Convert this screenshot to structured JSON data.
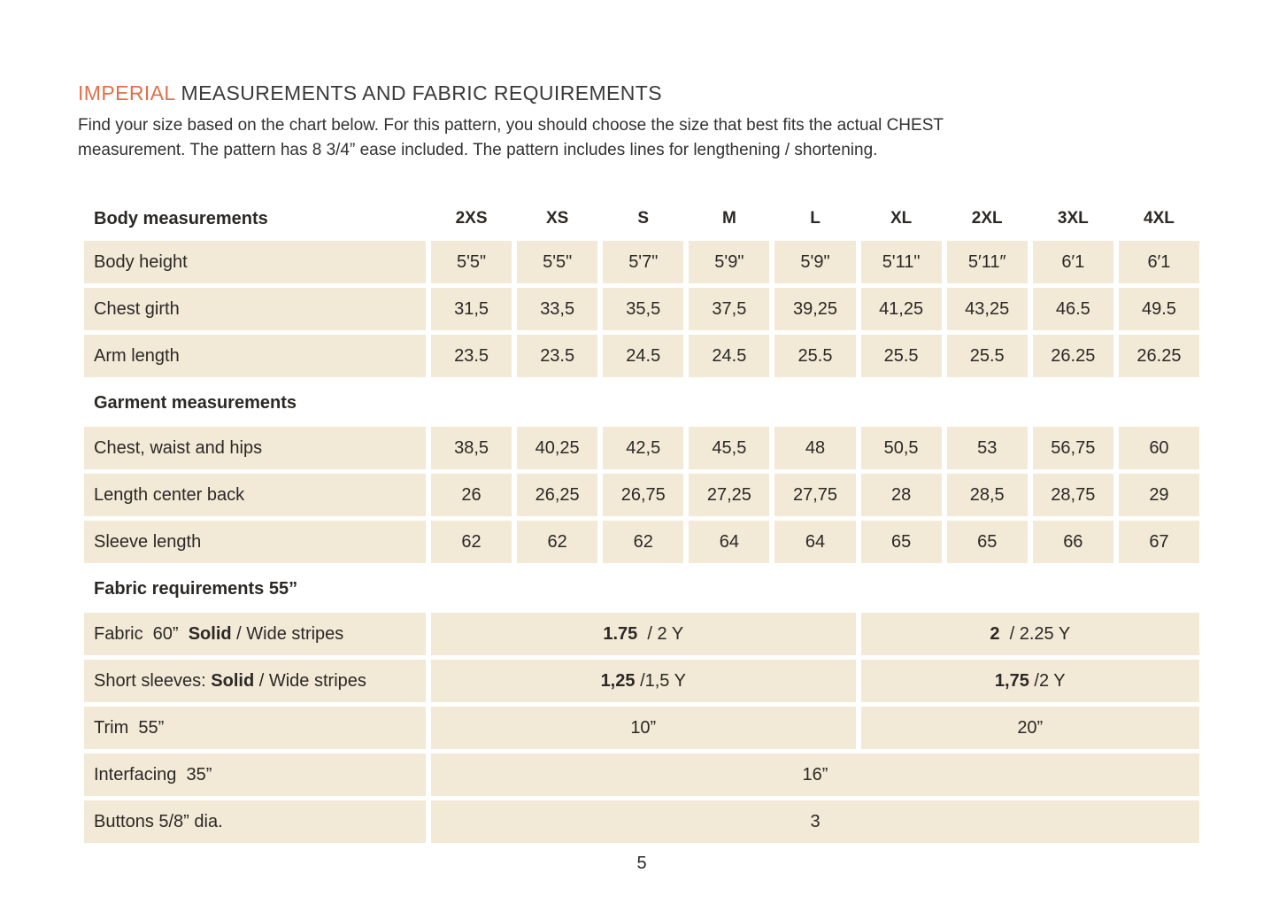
{
  "page": {
    "title_highlight": "IMPERIAL",
    "title_rest": " MEASUREMENTS AND FABRIC REQUIREMENTS",
    "intro_line1": "Find your size based on the chart below. For this pattern, you should choose the size that best fits the actual CHEST",
    "intro_line2": "measurement. The pattern has 8 3/4” ease included. The pattern includes lines for lengthening / shortening.",
    "page_number": "5"
  },
  "colors": {
    "accent_orange": "#e0714a",
    "cell_beige": "#f2e9d6",
    "text_dark": "#2b2826"
  },
  "table": {
    "body_section_label": "Body measurements",
    "sizes": [
      "2XS",
      "XS",
      "S",
      "M",
      "L",
      "XL",
      "2XL",
      "3XL",
      "4XL"
    ],
    "body_rows": [
      {
        "label": "Body height",
        "values": [
          "5'5\"",
          "5'5\"",
          "5'7\"",
          "5'9\"",
          "5'9\"",
          "5'11\"",
          "5′11″",
          "6′1",
          "6′1"
        ]
      },
      {
        "label": "Chest girth",
        "values": [
          "31,5",
          "33,5",
          "35,5",
          "37,5",
          "39,25",
          "41,25",
          "43,25",
          "46.5",
          "49.5"
        ]
      },
      {
        "label": "Arm length",
        "values": [
          "23.5",
          "23.5",
          "24.5",
          "24.5",
          "25.5",
          "25.5",
          "25.5",
          "26.25",
          "26.25"
        ]
      }
    ],
    "garment_section_label": "Garment measurements",
    "garment_rows": [
      {
        "label": "Chest, waist and hips",
        "values": [
          "38,5",
          "40,25",
          "42,5",
          "45,5",
          "48",
          "50,5",
          "53",
          "56,75",
          "60"
        ]
      },
      {
        "label": "Length center back",
        "values": [
          "26",
          "26,25",
          "26,75",
          "27,25",
          "27,75",
          "28",
          "28,5",
          "28,75",
          "29"
        ]
      },
      {
        "label": "Sleeve length",
        "values": [
          "62",
          "62",
          "62",
          "64",
          "64",
          "65",
          "65",
          "66",
          "67"
        ]
      }
    ],
    "fabric_section_label": "Fabric requirements 55”",
    "fabric_rows": [
      {
        "label_prefix": "Fabric  60”  ",
        "label_bold": "Solid",
        "label_suffix": " / Wide stripes",
        "left_bold": "1.75",
        "left_rest": "  / 2 Y",
        "right_bold": "2",
        "right_rest": "  / 2.25 Y"
      },
      {
        "label_prefix": "Short sleeves: ",
        "label_bold": "Solid",
        "label_suffix": " / Wide stripes",
        "left_bold": "1,25",
        "left_rest": " /1,5 Y",
        "right_bold": "1,75",
        "right_rest": " /2 Y"
      }
    ],
    "trim_row": {
      "label": "Trim  55”",
      "left": "10”",
      "right": "20”"
    },
    "full_rows": [
      {
        "label": "Interfacing  35”",
        "value": "16”"
      },
      {
        "label": "Buttons 5/8” dia.",
        "value": "3"
      }
    ]
  }
}
